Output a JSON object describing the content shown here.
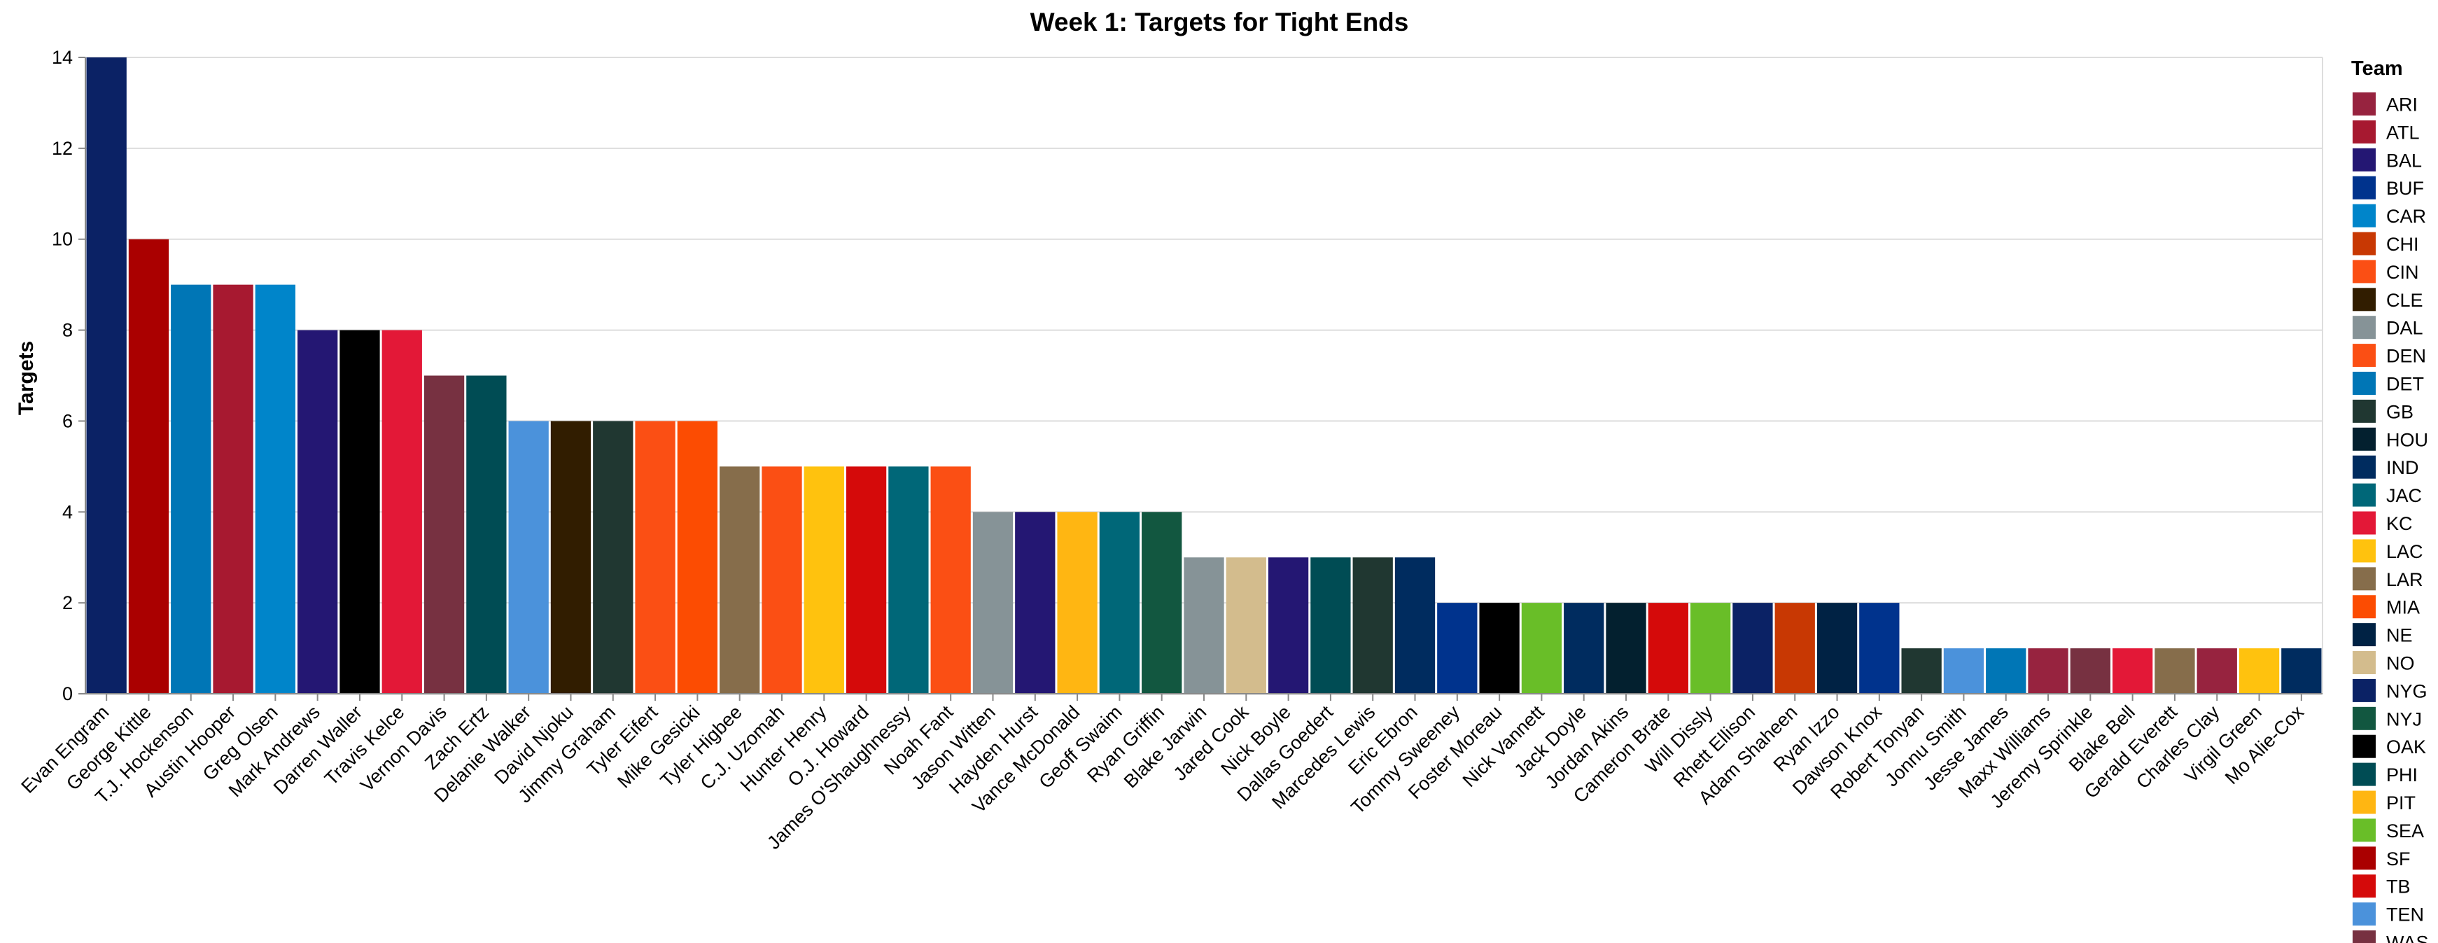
{
  "chart_data": {
    "type": "bar",
    "title": "Week 1: Targets for Tight Ends",
    "xlabel": "",
    "ylabel": "Targets",
    "ylim": [
      0,
      14
    ],
    "yticks": [
      0,
      2,
      4,
      6,
      8,
      10,
      12,
      14
    ],
    "grid": true,
    "legend": {
      "title": "Team",
      "placement": "right",
      "items": [
        {
          "label": "ARI",
          "color": "#97233f"
        },
        {
          "label": "ATL",
          "color": "#a71930"
        },
        {
          "label": "BAL",
          "color": "#241773"
        },
        {
          "label": "BUF",
          "color": "#00338d"
        },
        {
          "label": "CAR",
          "color": "#0085ca"
        },
        {
          "label": "CHI",
          "color": "#c83803"
        },
        {
          "label": "CIN",
          "color": "#fb4f14"
        },
        {
          "label": "CLE",
          "color": "#311d00"
        },
        {
          "label": "DAL",
          "color": "#869397"
        },
        {
          "label": "DEN",
          "color": "#fb4f14"
        },
        {
          "label": "DET",
          "color": "#0076b6"
        },
        {
          "label": "GB",
          "color": "#203731"
        },
        {
          "label": "HOU",
          "color": "#03202f"
        },
        {
          "label": "IND",
          "color": "#002c5f"
        },
        {
          "label": "JAC",
          "color": "#006778"
        },
        {
          "label": "KC",
          "color": "#e31837"
        },
        {
          "label": "LAC",
          "color": "#ffc20e"
        },
        {
          "label": "LAR",
          "color": "#866d4b"
        },
        {
          "label": "MIA",
          "color": "#fc4c02"
        },
        {
          "label": "NE",
          "color": "#002244"
        },
        {
          "label": "NO",
          "color": "#d3bc8d"
        },
        {
          "label": "NYG",
          "color": "#0b2265"
        },
        {
          "label": "NYJ",
          "color": "#125740"
        },
        {
          "label": "OAK",
          "color": "#000000"
        },
        {
          "label": "PHI",
          "color": "#004c54"
        },
        {
          "label": "PIT",
          "color": "#ffb612"
        },
        {
          "label": "SEA",
          "color": "#69be28"
        },
        {
          "label": "SF",
          "color": "#aa0000"
        },
        {
          "label": "TB",
          "color": "#d50a0a"
        },
        {
          "label": "TEN",
          "color": "#4b92db"
        },
        {
          "label": "WAS",
          "color": "#773141"
        }
      ]
    },
    "bars": [
      {
        "player": "Evan Engram",
        "team": "NYG",
        "value": 14
      },
      {
        "player": "George Kittle",
        "team": "SF",
        "value": 10
      },
      {
        "player": "T.J. Hockenson",
        "team": "DET",
        "value": 9
      },
      {
        "player": "Austin Hooper",
        "team": "ATL",
        "value": 9
      },
      {
        "player": "Greg Olsen",
        "team": "CAR",
        "value": 9
      },
      {
        "player": "Mark Andrews",
        "team": "BAL",
        "value": 8
      },
      {
        "player": "Darren Waller",
        "team": "OAK",
        "value": 8
      },
      {
        "player": "Travis Kelce",
        "team": "KC",
        "value": 8
      },
      {
        "player": "Vernon Davis",
        "team": "WAS",
        "value": 7
      },
      {
        "player": "Zach Ertz",
        "team": "PHI",
        "value": 7
      },
      {
        "player": "Delanie Walker",
        "team": "TEN",
        "value": 6
      },
      {
        "player": "David Njoku",
        "team": "CLE",
        "value": 6
      },
      {
        "player": "Jimmy Graham",
        "team": "GB",
        "value": 6
      },
      {
        "player": "Tyler Eifert",
        "team": "CIN",
        "value": 6
      },
      {
        "player": "Mike Gesicki",
        "team": "MIA",
        "value": 6
      },
      {
        "player": "Tyler Higbee",
        "team": "LAR",
        "value": 5
      },
      {
        "player": "C.J. Uzomah",
        "team": "CIN",
        "value": 5
      },
      {
        "player": "Hunter Henry",
        "team": "LAC",
        "value": 5
      },
      {
        "player": "O.J. Howard",
        "team": "TB",
        "value": 5
      },
      {
        "player": "James O'Shaughnessy",
        "team": "JAC",
        "value": 5
      },
      {
        "player": "Noah Fant",
        "team": "DEN",
        "value": 5
      },
      {
        "player": "Jason Witten",
        "team": "DAL",
        "value": 4
      },
      {
        "player": "Hayden Hurst",
        "team": "BAL",
        "value": 4
      },
      {
        "player": "Vance McDonald",
        "team": "PIT",
        "value": 4
      },
      {
        "player": "Geoff Swaim",
        "team": "JAC",
        "value": 4
      },
      {
        "player": "Ryan Griffin",
        "team": "NYJ",
        "value": 4
      },
      {
        "player": "Blake Jarwin",
        "team": "DAL",
        "value": 3
      },
      {
        "player": "Jared Cook",
        "team": "NO",
        "value": 3
      },
      {
        "player": "Nick Boyle",
        "team": "BAL",
        "value": 3
      },
      {
        "player": "Dallas Goedert",
        "team": "PHI",
        "value": 3
      },
      {
        "player": "Marcedes Lewis",
        "team": "GB",
        "value": 3
      },
      {
        "player": "Eric Ebron",
        "team": "IND",
        "value": 3
      },
      {
        "player": "Tommy Sweeney",
        "team": "BUF",
        "value": 2
      },
      {
        "player": "Foster Moreau",
        "team": "OAK",
        "value": 2
      },
      {
        "player": "Nick Vannett",
        "team": "SEA",
        "value": 2
      },
      {
        "player": "Jack Doyle",
        "team": "IND",
        "value": 2
      },
      {
        "player": "Jordan Akins",
        "team": "HOU",
        "value": 2
      },
      {
        "player": "Cameron Brate",
        "team": "TB",
        "value": 2
      },
      {
        "player": "Will Dissly",
        "team": "SEA",
        "value": 2
      },
      {
        "player": "Rhett Ellison",
        "team": "NYG",
        "value": 2
      },
      {
        "player": "Adam Shaheen",
        "team": "CHI",
        "value": 2
      },
      {
        "player": "Ryan Izzo",
        "team": "NE",
        "value": 2
      },
      {
        "player": "Dawson Knox",
        "team": "BUF",
        "value": 2
      },
      {
        "player": "Robert Tonyan",
        "team": "GB",
        "value": 1
      },
      {
        "player": "Jonnu Smith",
        "team": "TEN",
        "value": 1
      },
      {
        "player": "Jesse James",
        "team": "DET",
        "value": 1
      },
      {
        "player": "Maxx Williams",
        "team": "ARI",
        "value": 1
      },
      {
        "player": "Jeremy Sprinkle",
        "team": "WAS",
        "value": 1
      },
      {
        "player": "Blake Bell",
        "team": "KC",
        "value": 1
      },
      {
        "player": "Gerald Everett",
        "team": "LAR",
        "value": 1
      },
      {
        "player": "Charles Clay",
        "team": "ARI",
        "value": 1
      },
      {
        "player": "Virgil Green",
        "team": "LAC",
        "value": 1
      },
      {
        "player": "Mo Alie-Cox",
        "team": "IND",
        "value": 1
      }
    ]
  }
}
